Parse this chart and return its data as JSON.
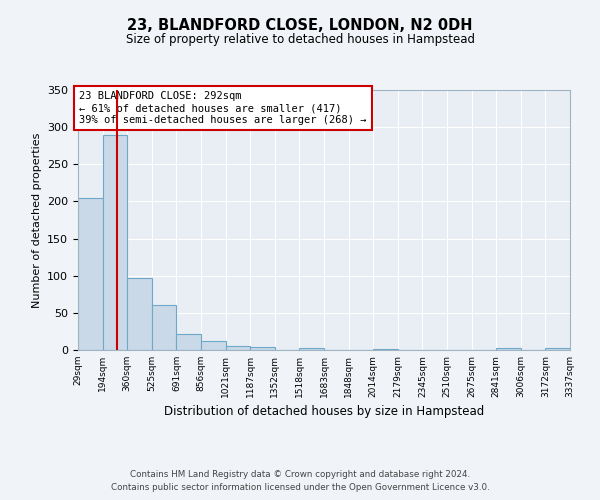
{
  "title": "23, BLANDFORD CLOSE, LONDON, N2 0DH",
  "subtitle": "Size of property relative to detached houses in Hampstead",
  "xlabel": "Distribution of detached houses by size in Hampstead",
  "ylabel": "Number of detached properties",
  "bar_edges": [
    29,
    194,
    360,
    525,
    691,
    856,
    1021,
    1187,
    1352,
    1518,
    1683,
    1848,
    2014,
    2179,
    2345,
    2510,
    2675,
    2841,
    3006,
    3172,
    3337
  ],
  "bar_heights": [
    205,
    290,
    97,
    60,
    21,
    12,
    5,
    4,
    0,
    3,
    0,
    0,
    2,
    0,
    0,
    0,
    0,
    3,
    0,
    3
  ],
  "tick_labels": [
    "29sqm",
    "194sqm",
    "360sqm",
    "525sqm",
    "691sqm",
    "856sqm",
    "1021sqm",
    "1187sqm",
    "1352sqm",
    "1518sqm",
    "1683sqm",
    "1848sqm",
    "2014sqm",
    "2179sqm",
    "2345sqm",
    "2510sqm",
    "2675sqm",
    "2841sqm",
    "3006sqm",
    "3172sqm",
    "3337sqm"
  ],
  "bar_color": "#c9d9e8",
  "bar_edge_color": "#6fa8c9",
  "vline_x": 292,
  "vline_color": "#cc0000",
  "annotation_text": "23 BLANDFORD CLOSE: 292sqm\n← 61% of detached houses are smaller (417)\n39% of semi-detached houses are larger (268) →",
  "annotation_box_color": "#ffffff",
  "annotation_box_edge": "#cc0000",
  "ylim": [
    0,
    350
  ],
  "yticks": [
    0,
    50,
    100,
    150,
    200,
    250,
    300,
    350
  ],
  "bg_color": "#e8eef4",
  "fig_bg_color": "#f0f4f8",
  "footer_line1": "Contains HM Land Registry data © Crown copyright and database right 2024.",
  "footer_line2": "Contains public sector information licensed under the Open Government Licence v3.0."
}
